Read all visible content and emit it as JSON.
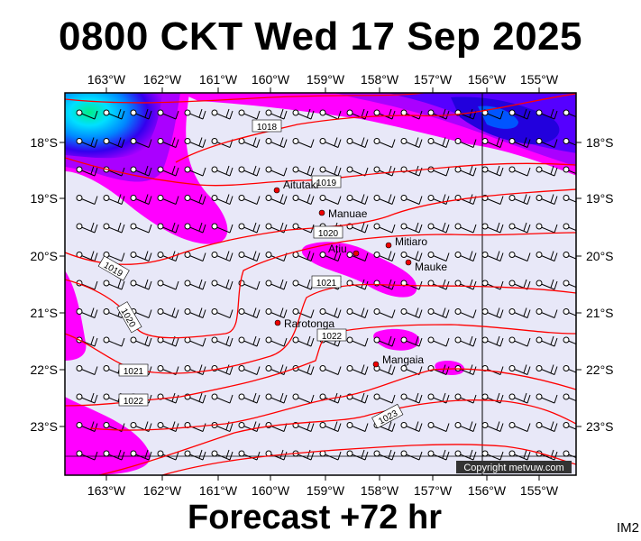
{
  "header": {
    "title": "0800 CKT Wed 17 Sep 2025"
  },
  "footer": {
    "forecast": "Forecast +72 hr",
    "image_tag": "IM2"
  },
  "map": {
    "lon_labels": [
      "163°W",
      "162°W",
      "161°W",
      "160°W",
      "159°W",
      "158°W",
      "157°W",
      "156°W",
      "155°W"
    ],
    "lat_labels": [
      "18°S",
      "19°S",
      "20°S",
      "21°S",
      "22°S",
      "23°S"
    ],
    "isobar_labels": [
      "1018",
      "1019",
      "1019",
      "1020",
      "1020",
      "1021",
      "1021",
      "1022",
      "1022",
      "1023"
    ],
    "towns": [
      {
        "name": "Aitutaki"
      },
      {
        "name": "Manuae"
      },
      {
        "name": "Mitiaro"
      },
      {
        "name": "Atiu"
      },
      {
        "name": "Mauke"
      },
      {
        "name": "Rarotonga"
      },
      {
        "name": "Mangaia"
      }
    ],
    "copyright": "Copyright metvuw.com",
    "colors": {
      "background": "#e8e8f8",
      "isobar": "#ff0000",
      "rain_magenta": "#ff00ff",
      "rain_violet": "#aa00ff",
      "rain_blue": "#2200ee",
      "rain_cyan": "#00e0ff",
      "rain_green": "#00ee88",
      "town_dot": "#ee0000"
    }
  }
}
